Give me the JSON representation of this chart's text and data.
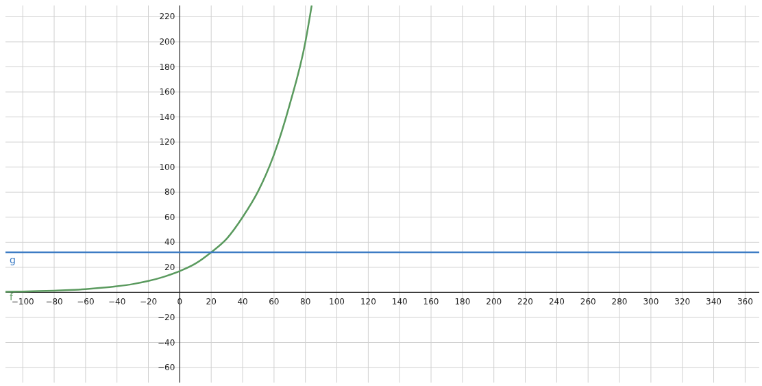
{
  "chart_data": {
    "type": "line",
    "xlim": [
      -111,
      369
    ],
    "ylim": [
      -72,
      229
    ],
    "xticks": [
      -100,
      -80,
      -60,
      -40,
      -20,
      0,
      20,
      40,
      60,
      80,
      100,
      120,
      140,
      160,
      180,
      200,
      220,
      240,
      260,
      280,
      300,
      320,
      340,
      360
    ],
    "yticks": [
      -60,
      -40,
      -20,
      20,
      40,
      60,
      80,
      100,
      120,
      140,
      160,
      180,
      200,
      220
    ],
    "grid": true,
    "marker": "none",
    "line_style": "solid",
    "series": [
      {
        "name": "f",
        "color": "#5a9a5e",
        "x": [
          -111,
          -100,
          -90,
          -80,
          -70,
          -60,
          -50,
          -40,
          -30,
          -20,
          -10,
          0,
          10,
          20,
          30,
          40,
          50,
          60,
          70,
          80,
          84
        ],
        "values": [
          0.5,
          0.7,
          1,
          1.4,
          1.9,
          2.6,
          3.6,
          4.9,
          6.6,
          9.1,
          12.5,
          17,
          23,
          32,
          43,
          60,
          81,
          110,
          150,
          200,
          229
        ]
      },
      {
        "name": "g",
        "color": "#3d7cc4",
        "x": [
          -111,
          369
        ],
        "values": [
          32,
          32
        ]
      }
    ]
  }
}
